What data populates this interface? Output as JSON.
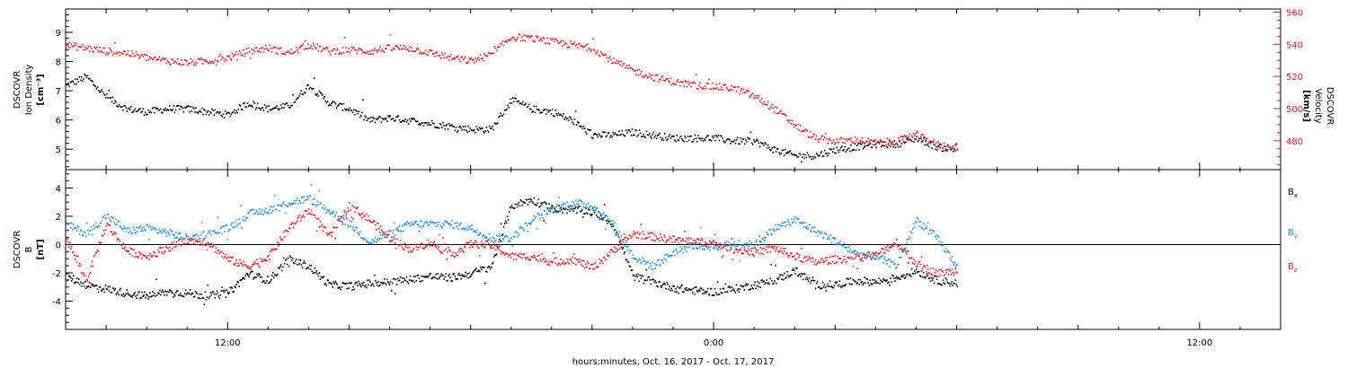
{
  "colors": {
    "black": "#000000",
    "red": "#e41a1c",
    "blue": "#1f8fe6"
  },
  "xaxis": {
    "label": "hours:minutes, Oct. 16, 2017 - Oct. 17, 2017",
    "ticks": [
      {
        "hour": 12,
        "label": "12:00"
      },
      {
        "hour": 24,
        "label": "0:00"
      },
      {
        "hour": 36,
        "label": "12:00"
      }
    ],
    "range_hours": [
      8,
      38
    ]
  },
  "chart_data": [
    {
      "type": "scatter",
      "ylabel_left": [
        "DSCOVR",
        "Ion Density",
        "[cm⁻³]"
      ],
      "ylabel_right": [
        "DSCOVR",
        "Velocity",
        "[km/s]"
      ],
      "ylim_left": [
        4.3,
        9.8
      ],
      "yticks_left": [
        5,
        6,
        7,
        8,
        9
      ],
      "ylim_right": [
        462,
        562
      ],
      "yticks_right": [
        480,
        500,
        520,
        540,
        560
      ],
      "series": [
        {
          "axis": "left",
          "color": "black",
          "x_hours": [
            8.0,
            8.5,
            9.0,
            9.5,
            10.0,
            10.5,
            11.0,
            11.5,
            12.0,
            12.5,
            13.0,
            13.5,
            14.0,
            14.5,
            15.0,
            15.5,
            16.0,
            16.5,
            17.0,
            17.5,
            18.0,
            18.5,
            19.0,
            19.5,
            20.0,
            20.5,
            21.0,
            21.5,
            22.0,
            22.5,
            23.0,
            23.5,
            24.0,
            24.5,
            25.0,
            25.5,
            26.0,
            26.5,
            27.0,
            27.5,
            28.0,
            28.5,
            29.0,
            29.5,
            30.0
          ],
          "values": [
            7.2,
            7.5,
            6.8,
            6.4,
            6.3,
            6.4,
            6.4,
            6.3,
            6.2,
            6.6,
            6.4,
            6.5,
            7.2,
            6.6,
            6.4,
            6.0,
            6.1,
            6.0,
            5.9,
            5.8,
            5.7,
            5.7,
            6.7,
            6.4,
            6.3,
            6.0,
            5.5,
            5.5,
            5.6,
            5.5,
            5.4,
            5.4,
            5.4,
            5.3,
            5.3,
            5.0,
            4.8,
            4.8,
            5.0,
            5.1,
            5.2,
            5.2,
            5.4,
            5.1,
            5.0
          ]
        },
        {
          "axis": "right",
          "color": "red",
          "x_hours": [
            8.0,
            8.5,
            9.0,
            9.5,
            10.0,
            10.5,
            11.0,
            11.5,
            12.0,
            12.5,
            13.0,
            13.5,
            14.0,
            14.5,
            15.0,
            15.5,
            16.0,
            16.5,
            17.0,
            17.5,
            18.0,
            18.5,
            19.0,
            19.5,
            20.0,
            20.5,
            21.0,
            21.5,
            22.0,
            22.5,
            23.0,
            23.5,
            24.0,
            24.5,
            25.0,
            25.5,
            26.0,
            26.5,
            27.0,
            27.5,
            28.0,
            28.5,
            29.0,
            29.5,
            30.0
          ],
          "values": [
            540,
            538,
            536,
            535,
            532,
            530,
            529,
            530,
            532,
            536,
            538,
            535,
            540,
            536,
            537,
            536,
            538,
            538,
            535,
            532,
            530,
            534,
            545,
            544,
            542,
            540,
            538,
            530,
            524,
            520,
            517,
            515,
            514,
            513,
            508,
            500,
            490,
            482,
            480,
            481,
            479,
            480,
            484,
            478,
            476
          ]
        }
      ]
    },
    {
      "type": "scatter",
      "ylabel_left": [
        "DSCOVR",
        "B",
        "[nT]"
      ],
      "ylim": [
        -6,
        5.3
      ],
      "yticks": [
        -4,
        -2,
        0,
        2,
        4
      ],
      "zero_line": true,
      "legend": [
        {
          "label": "B",
          "sub": "x",
          "color": "black"
        },
        {
          "label": "B",
          "sub": "y",
          "color": "blue"
        },
        {
          "label": "B",
          "sub": "z",
          "color": "red"
        }
      ],
      "series": [
        {
          "name": "Bx",
          "color": "black",
          "x_hours": [
            8.0,
            8.5,
            9.0,
            9.5,
            10.0,
            10.5,
            11.0,
            11.5,
            12.0,
            12.5,
            13.0,
            13.5,
            14.0,
            14.5,
            15.0,
            15.5,
            16.0,
            16.5,
            17.0,
            17.5,
            18.0,
            18.5,
            19.0,
            19.5,
            20.0,
            20.5,
            21.0,
            21.5,
            22.0,
            22.5,
            23.0,
            23.5,
            24.0,
            24.5,
            25.0,
            25.5,
            26.0,
            26.5,
            27.0,
            27.5,
            28.0,
            28.5,
            29.0,
            29.5,
            30.0
          ],
          "values": [
            -2.2,
            -2.8,
            -3.1,
            -3.4,
            -3.6,
            -3.3,
            -3.4,
            -3.6,
            -3.4,
            -2.0,
            -2.5,
            -1.0,
            -1.5,
            -2.8,
            -2.9,
            -2.7,
            -2.6,
            -2.4,
            -2.2,
            -2.3,
            -2.0,
            -1.5,
            2.8,
            3.2,
            2.6,
            2.5,
            2.4,
            1.5,
            -2.2,
            -2.6,
            -3.0,
            -3.2,
            -3.3,
            -3.1,
            -2.8,
            -2.5,
            -1.8,
            -2.8,
            -2.8,
            -2.5,
            -2.6,
            -2.3,
            -1.8,
            -2.5,
            -2.7
          ]
        },
        {
          "name": "By",
          "color": "blue",
          "x_hours": [
            8.0,
            8.5,
            9.0,
            9.5,
            10.0,
            10.5,
            11.0,
            11.5,
            12.0,
            12.5,
            13.0,
            13.5,
            14.0,
            14.5,
            15.0,
            15.5,
            16.0,
            16.5,
            17.0,
            17.5,
            18.0,
            18.5,
            19.0,
            19.5,
            20.0,
            20.5,
            21.0,
            21.5,
            22.0,
            22.5,
            23.0,
            23.5,
            24.0,
            24.5,
            25.0,
            25.5,
            26.0,
            26.5,
            27.0,
            27.5,
            28.0,
            28.5,
            29.0,
            29.5,
            30.0
          ],
          "values": [
            1.5,
            0.8,
            2.1,
            1.0,
            1.2,
            0.9,
            0.5,
            0.8,
            1.2,
            2.2,
            2.5,
            3.0,
            3.3,
            2.4,
            1.5,
            0.2,
            0.8,
            1.5,
            1.5,
            1.5,
            1.2,
            0.5,
            0.5,
            1.8,
            2.5,
            3.0,
            2.8,
            1.5,
            -0.8,
            -1.5,
            -0.5,
            0.0,
            -0.1,
            0.1,
            0.0,
            1.2,
            1.8,
            1.0,
            0.3,
            -0.6,
            -0.8,
            -1.5,
            1.8,
            0.5,
            -1.5
          ]
        },
        {
          "name": "Bz",
          "color": "red",
          "x_hours": [
            8.0,
            8.5,
            9.0,
            9.5,
            10.0,
            10.5,
            11.0,
            11.5,
            12.0,
            12.5,
            13.0,
            13.5,
            14.0,
            14.5,
            15.0,
            15.5,
            16.0,
            16.5,
            17.0,
            17.5,
            18.0,
            18.5,
            19.0,
            19.5,
            20.0,
            20.5,
            21.0,
            21.5,
            22.0,
            22.5,
            23.0,
            23.5,
            24.0,
            24.5,
            25.0,
            25.5,
            26.0,
            26.5,
            27.0,
            27.5,
            28.0,
            28.5,
            29.0,
            29.5,
            30.0
          ],
          "values": [
            0.5,
            -2.5,
            1.5,
            -0.4,
            -0.8,
            -0.2,
            0.4,
            0.2,
            -1.0,
            -1.5,
            -0.8,
            1.2,
            2.5,
            0.6,
            2.8,
            1.8,
            0.5,
            -0.3,
            0.2,
            -0.7,
            0.1,
            0.0,
            -0.8,
            -0.8,
            -1.2,
            -1.0,
            -1.6,
            -0.4,
            0.8,
            0.6,
            0.4,
            0.3,
            0.1,
            -0.3,
            -0.5,
            -0.2,
            -0.8,
            -1.2,
            -1.0,
            -0.9,
            -0.7,
            0.2,
            -1.3,
            -2.0,
            -1.8
          ]
        }
      ]
    }
  ]
}
